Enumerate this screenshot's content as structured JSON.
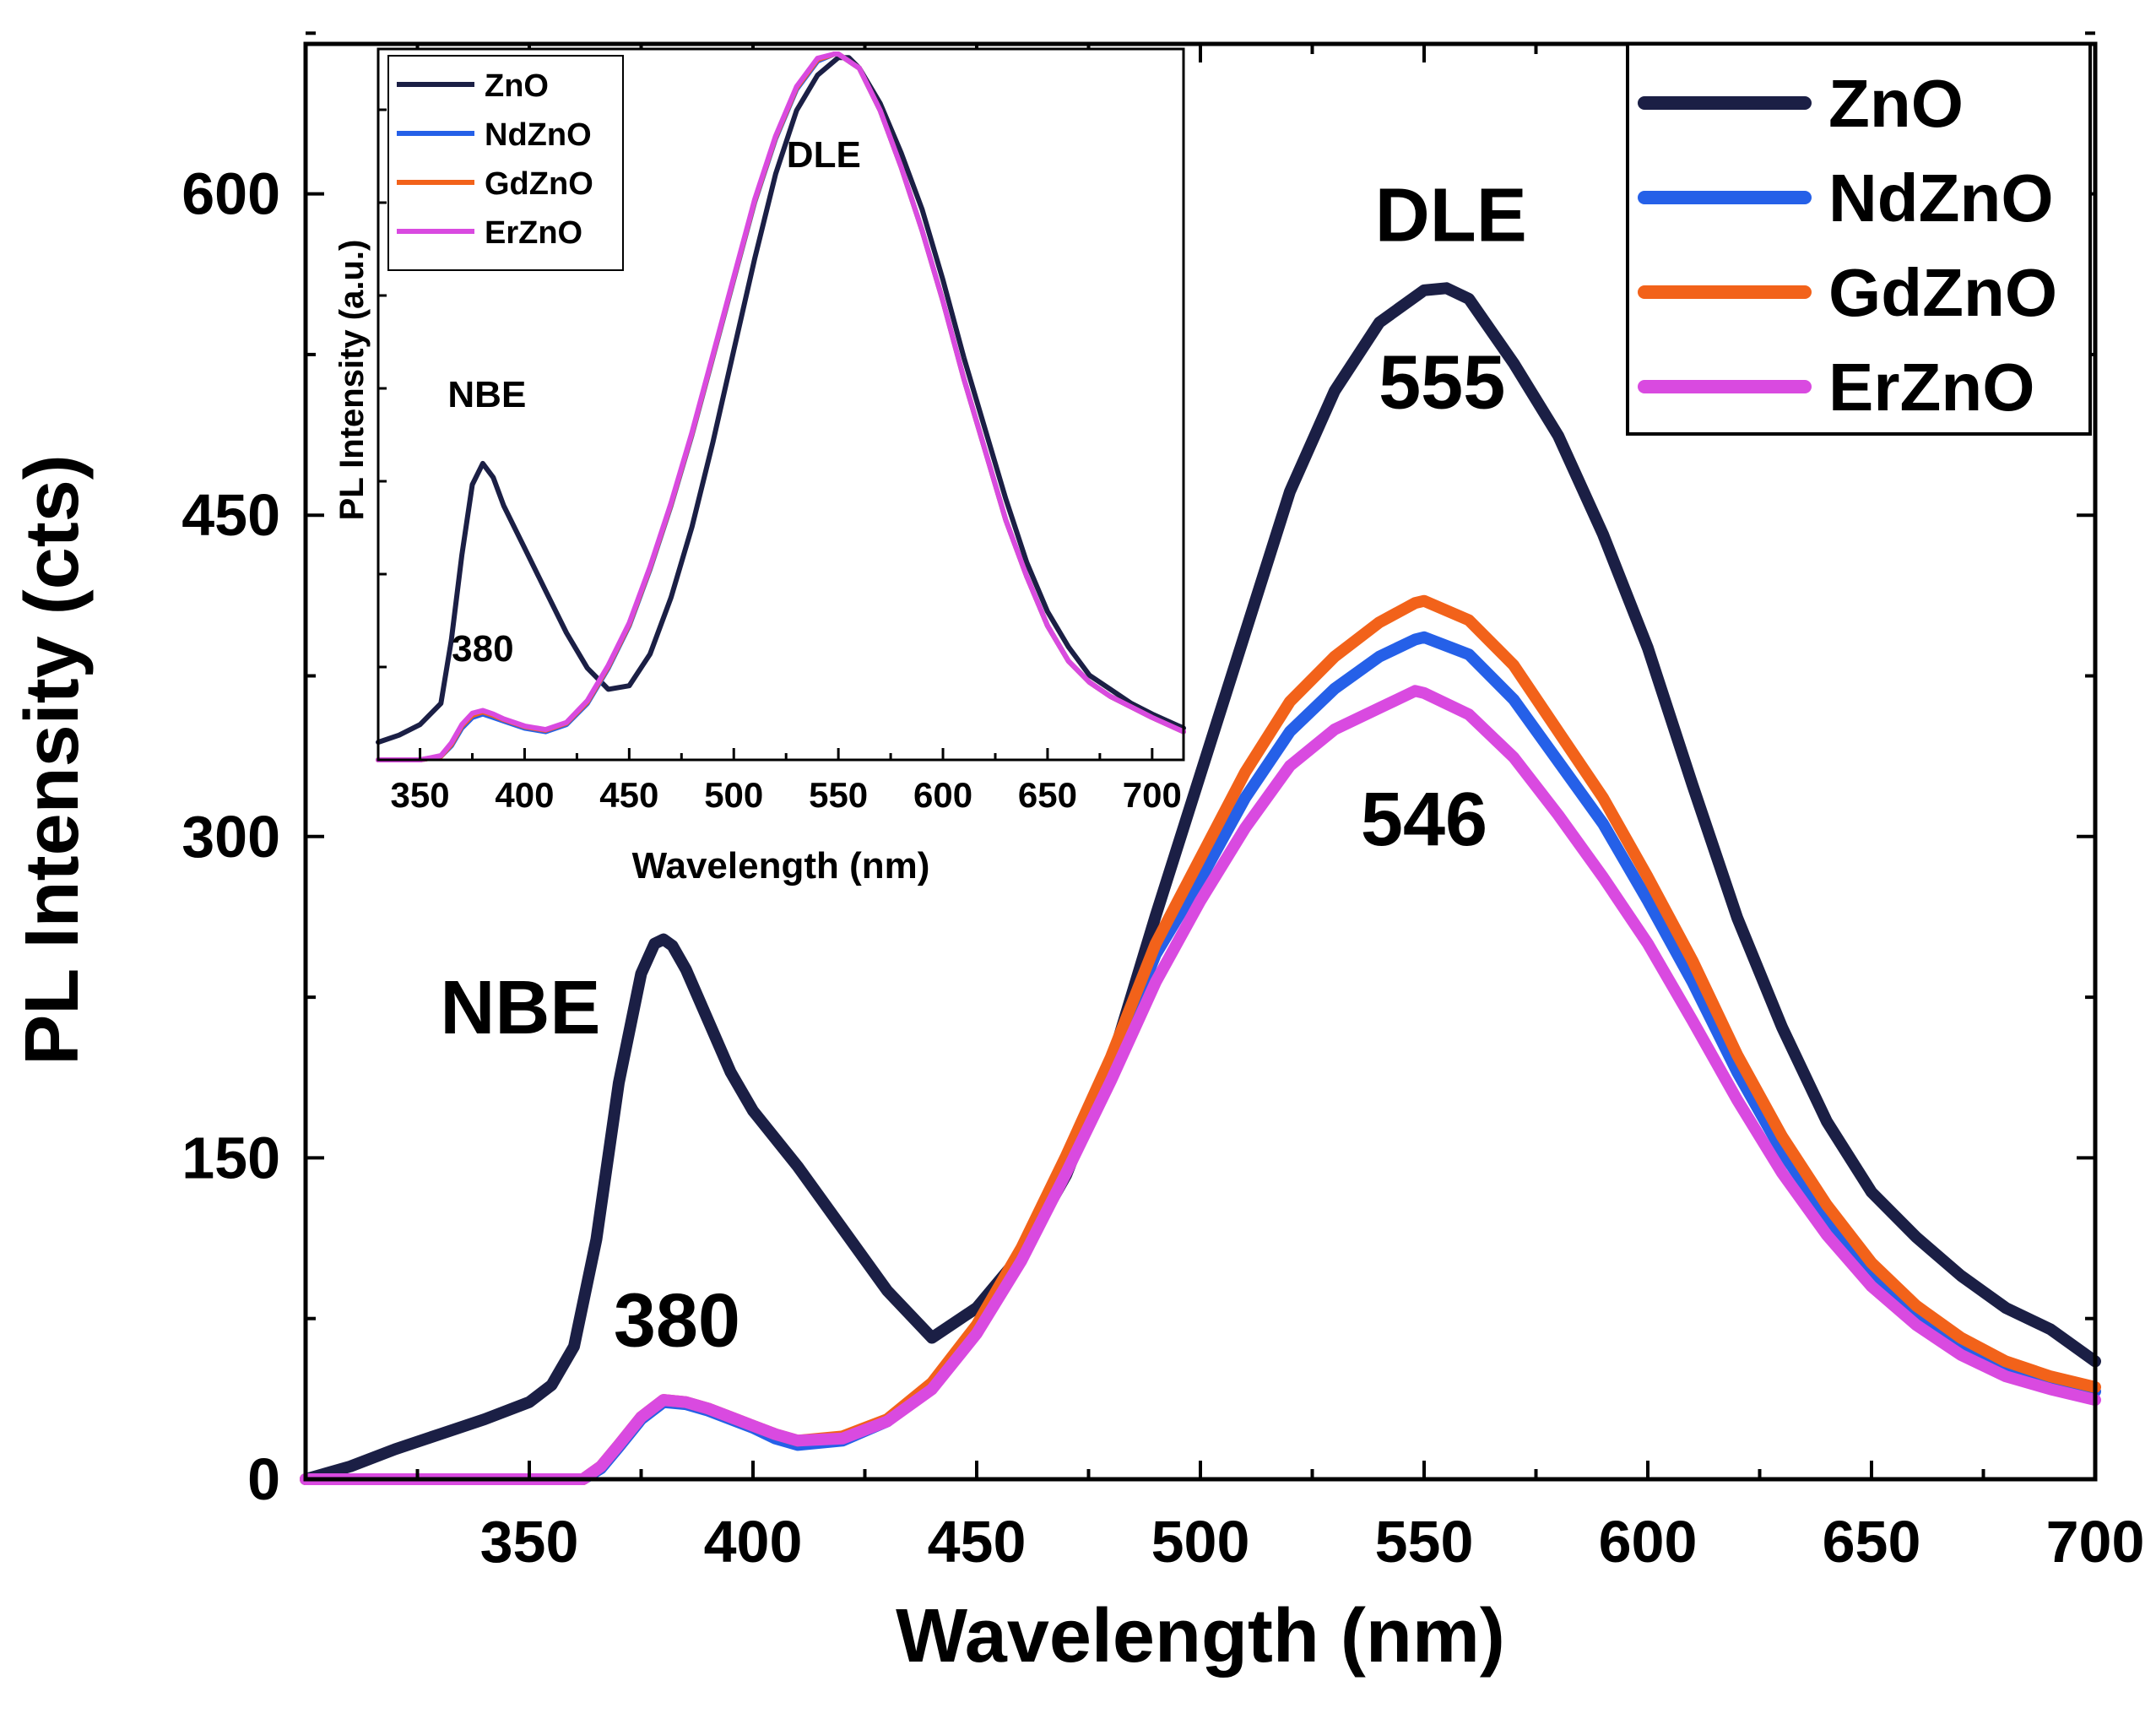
{
  "colors": {
    "ZnO": "#1b1f45",
    "NdZnO": "#2560e8",
    "GdZnO": "#f2621a",
    "ErZnO": "#d94ae0"
  },
  "chart_data": [
    {
      "id": "main",
      "type": "line",
      "title": "",
      "xlabel": "Wavelength (nm)",
      "ylabel": "PL Intensity (cts)",
      "xlim": [
        300,
        700
      ],
      "ylim": [
        0,
        670
      ],
      "xticks": [
        350,
        400,
        450,
        500,
        550,
        600,
        650,
        700
      ],
      "yticks": [
        0,
        150,
        300,
        450,
        600
      ],
      "grid": false,
      "legend_position": "top-right",
      "series": [
        {
          "name": "ZnO",
          "x": [
            300,
            310,
            320,
            330,
            340,
            350,
            355,
            360,
            365,
            370,
            375,
            378,
            380,
            382,
            385,
            390,
            395,
            400,
            410,
            420,
            430,
            440,
            450,
            460,
            470,
            480,
            490,
            500,
            510,
            520,
            530,
            540,
            550,
            555,
            560,
            570,
            580,
            590,
            600,
            610,
            620,
            630,
            640,
            650,
            660,
            670,
            680,
            690,
            700
          ],
          "y": [
            0,
            6,
            14,
            21,
            28,
            36,
            44,
            62,
            112,
            185,
            236,
            250,
            252,
            249,
            238,
            214,
            190,
            172,
            146,
            117,
            88,
            66,
            80,
            105,
            142,
            194,
            263,
            329,
            395,
            461,
            508,
            540,
            555,
            556,
            551,
            521,
            487,
            441,
            388,
            324,
            262,
            211,
            167,
            134,
            113,
            95,
            80,
            70,
            55
          ]
        },
        {
          "name": "NdZnO",
          "x": [
            300,
            340,
            355,
            362,
            366,
            370,
            375,
            380,
            385,
            390,
            395,
            400,
            405,
            410,
            420,
            430,
            440,
            450,
            460,
            470,
            480,
            490,
            500,
            510,
            520,
            530,
            540,
            548,
            550,
            560,
            570,
            580,
            590,
            600,
            610,
            620,
            630,
            640,
            650,
            660,
            670,
            680,
            690,
            700
          ],
          "y": [
            0,
            0,
            0,
            0,
            5,
            15,
            28,
            36,
            35,
            32,
            28,
            24,
            19,
            16,
            18,
            27,
            43,
            70,
            105,
            148,
            193,
            245,
            280,
            318,
            349,
            369,
            384,
            392,
            393,
            385,
            364,
            335,
            306,
            270,
            232,
            190,
            153,
            122,
            96,
            77,
            62,
            52,
            46,
            41
          ]
        },
        {
          "name": "GdZnO",
          "x": [
            300,
            340,
            355,
            362,
            366,
            370,
            375,
            380,
            385,
            390,
            395,
            400,
            405,
            410,
            420,
            430,
            440,
            450,
            460,
            470,
            480,
            490,
            500,
            510,
            520,
            530,
            540,
            548,
            550,
            560,
            570,
            580,
            590,
            600,
            610,
            620,
            630,
            640,
            650,
            660,
            670,
            680,
            690,
            700
          ],
          "y": [
            0,
            0,
            0,
            0,
            6,
            16,
            29,
            37,
            36,
            33,
            29,
            25,
            21,
            18,
            20,
            28,
            45,
            72,
            108,
            151,
            197,
            250,
            290,
            330,
            363,
            384,
            400,
            409,
            410,
            401,
            380,
            349,
            318,
            281,
            242,
            198,
            160,
            128,
            101,
            81,
            66,
            55,
            48,
            43
          ]
        },
        {
          "name": "ErZnO",
          "x": [
            300,
            340,
            355,
            362,
            366,
            370,
            375,
            380,
            385,
            390,
            395,
            400,
            405,
            410,
            420,
            430,
            440,
            450,
            460,
            470,
            480,
            490,
            500,
            510,
            520,
            530,
            540,
            548,
            550,
            560,
            570,
            580,
            590,
            600,
            610,
            620,
            630,
            640,
            650,
            660,
            670,
            680,
            690,
            700
          ],
          "y": [
            0,
            0,
            0,
            0,
            6,
            16,
            29,
            37,
            36,
            33,
            29,
            25,
            21,
            18,
            19,
            27,
            42,
            68,
            102,
            143,
            186,
            232,
            270,
            304,
            333,
            350,
            360,
            368,
            367,
            357,
            337,
            310,
            281,
            250,
            214,
            177,
            143,
            114,
            90,
            72,
            58,
            48,
            42,
            37
          ]
        }
      ],
      "annotations": [
        {
          "text": "NBE",
          "x": 348,
          "y": 208
        },
        {
          "text": "380",
          "x": 383,
          "y": 62
        },
        {
          "text": "DLE",
          "x": 556,
          "y": 578
        },
        {
          "text": "555",
          "x": 554,
          "y": 500
        },
        {
          "text": "546",
          "x": 550,
          "y": 296
        }
      ]
    },
    {
      "id": "inset",
      "type": "line",
      "title": "",
      "xlabel": "Wavelength (nm)",
      "ylabel": "PL Intensity (a.u.)",
      "xlim": [
        330,
        715
      ],
      "ylim": [
        0,
        1.0
      ],
      "xticks": [
        350,
        400,
        450,
        500,
        550,
        600,
        650,
        700
      ],
      "yticks": [],
      "grid": false,
      "legend_position": "top-left",
      "series": [
        {
          "name": "ZnO",
          "x": [
            330,
            340,
            350,
            360,
            365,
            370,
            375,
            380,
            385,
            390,
            400,
            410,
            420,
            430,
            440,
            450,
            460,
            470,
            480,
            490,
            500,
            510,
            520,
            530,
            540,
            550,
            555,
            560,
            570,
            580,
            590,
            600,
            610,
            620,
            630,
            640,
            650,
            660,
            670,
            680,
            690,
            700,
            715
          ],
          "y": [
            0.025,
            0.035,
            0.05,
            0.08,
            0.17,
            0.29,
            0.39,
            0.42,
            0.4,
            0.36,
            0.3,
            0.24,
            0.18,
            0.13,
            0.1,
            0.105,
            0.15,
            0.23,
            0.33,
            0.45,
            0.58,
            0.71,
            0.83,
            0.92,
            0.97,
            0.995,
            0.995,
            0.98,
            0.93,
            0.86,
            0.78,
            0.68,
            0.57,
            0.47,
            0.37,
            0.28,
            0.21,
            0.16,
            0.12,
            0.1,
            0.08,
            0.065,
            0.045
          ]
        },
        {
          "name": "NdZnO",
          "x": [
            330,
            350,
            360,
            365,
            370,
            375,
            380,
            385,
            390,
            400,
            410,
            420,
            430,
            440,
            450,
            460,
            470,
            480,
            490,
            500,
            510,
            520,
            530,
            540,
            548,
            550,
            560,
            570,
            580,
            590,
            600,
            610,
            620,
            630,
            640,
            650,
            660,
            670,
            680,
            690,
            700,
            715
          ],
          "y": [
            0,
            0,
            0.005,
            0.02,
            0.045,
            0.06,
            0.065,
            0.06,
            0.055,
            0.045,
            0.04,
            0.05,
            0.08,
            0.13,
            0.19,
            0.27,
            0.36,
            0.46,
            0.57,
            0.68,
            0.79,
            0.88,
            0.95,
            0.99,
            1.0,
            1.0,
            0.98,
            0.92,
            0.84,
            0.75,
            0.65,
            0.54,
            0.44,
            0.34,
            0.26,
            0.19,
            0.14,
            0.11,
            0.09,
            0.075,
            0.06,
            0.04
          ]
        },
        {
          "name": "GdZnO",
          "x": [
            330,
            350,
            360,
            365,
            370,
            375,
            380,
            385,
            390,
            400,
            410,
            420,
            430,
            440,
            450,
            460,
            470,
            480,
            490,
            500,
            510,
            520,
            530,
            540,
            548,
            550,
            560,
            570,
            580,
            590,
            600,
            610,
            620,
            630,
            640,
            650,
            660,
            670,
            680,
            690,
            700,
            715
          ],
          "y": [
            0,
            0,
            0.005,
            0.022,
            0.048,
            0.063,
            0.068,
            0.063,
            0.057,
            0.047,
            0.042,
            0.052,
            0.082,
            0.132,
            0.192,
            0.272,
            0.362,
            0.462,
            0.572,
            0.682,
            0.792,
            0.882,
            0.952,
            0.992,
            1.0,
            1.0,
            0.98,
            0.92,
            0.84,
            0.75,
            0.65,
            0.54,
            0.44,
            0.34,
            0.26,
            0.19,
            0.14,
            0.11,
            0.09,
            0.075,
            0.06,
            0.04
          ]
        },
        {
          "name": "ErZnO",
          "x": [
            330,
            350,
            360,
            365,
            370,
            375,
            380,
            385,
            390,
            400,
            410,
            420,
            430,
            440,
            450,
            460,
            470,
            480,
            490,
            500,
            510,
            520,
            530,
            540,
            548,
            550,
            560,
            570,
            580,
            590,
            600,
            610,
            620,
            630,
            640,
            650,
            660,
            670,
            680,
            690,
            700,
            715
          ],
          "y": [
            0,
            0,
            0.006,
            0.024,
            0.05,
            0.066,
            0.07,
            0.065,
            0.058,
            0.048,
            0.043,
            0.053,
            0.084,
            0.134,
            0.194,
            0.274,
            0.364,
            0.464,
            0.574,
            0.684,
            0.794,
            0.884,
            0.954,
            0.994,
            1.0,
            1.0,
            0.98,
            0.92,
            0.84,
            0.75,
            0.65,
            0.54,
            0.44,
            0.34,
            0.26,
            0.19,
            0.14,
            0.11,
            0.09,
            0.075,
            0.06,
            0.04
          ]
        }
      ],
      "annotations": [
        {
          "text": "DLE",
          "x": 543,
          "y": 0.84
        },
        {
          "text": "NBE",
          "x": 382,
          "y": 0.5
        },
        {
          "text": "380",
          "x": 380,
          "y": 0.14
        }
      ]
    }
  ]
}
